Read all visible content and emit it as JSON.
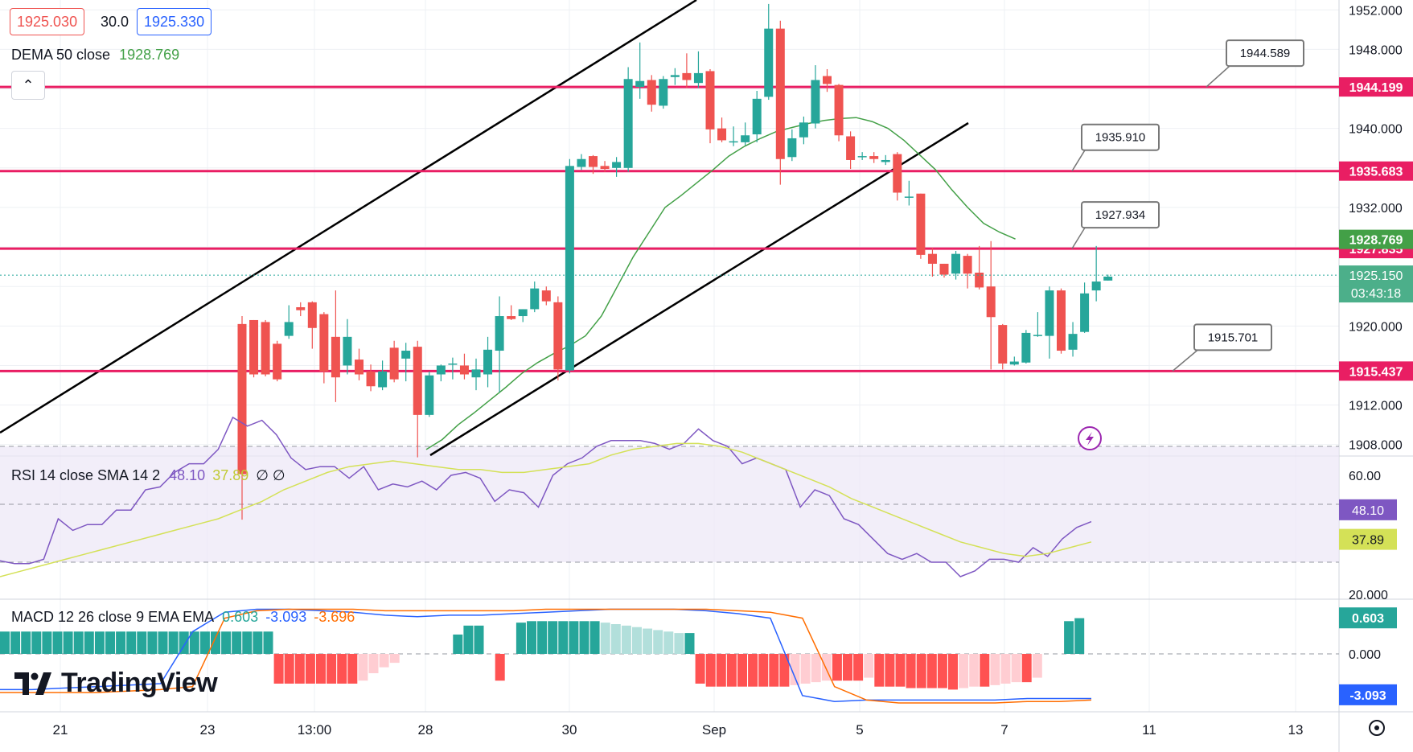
{
  "header": {
    "bid": "1925.030",
    "spread": "30.0",
    "ask": "1925.330",
    "dema_label": "DEMA 50 close",
    "dema_value": "1928.769"
  },
  "rsi_legend": {
    "label": "RSI 14 close SMA 14 2",
    "rsi": "48.10",
    "sma": "37.89",
    "extra": "∅ ∅"
  },
  "macd_legend": {
    "label": "MACD 12 26 close 9 EMA EMA",
    "hist": "0.603",
    "macd": "-3.093",
    "signal": "-3.696"
  },
  "branding": {
    "logo_text": "TradingView"
  },
  "colors": {
    "up": "#26a69a",
    "down": "#ef5350",
    "level": "#e91e63",
    "channel": "#000000",
    "dema": "#43a047",
    "rsi": "#7e57c2",
    "rsi_sma": "#d4e157",
    "macd": "#2962ff",
    "signal": "#ff6d00"
  },
  "chart_data": [
    {
      "type": "candlestick",
      "x_ticks": [
        "21",
        "23",
        "13:00",
        "28",
        "30",
        "Sep",
        "5",
        "7",
        "11",
        "13"
      ],
      "y_ticks": [
        "1952.000",
        "1948.000",
        "1944.000",
        "1940.000",
        "1936.000",
        "1932.000",
        "1928.000",
        "1924.000",
        "1920.000",
        "1916.000",
        "1912.000",
        "1908.000"
      ],
      "ylim": [
        1907,
        1953
      ],
      "candles": [
        [
          1920.2,
          1905,
          1921,
          1900.4
        ],
        [
          1920.6,
          1915.1,
          1920.6,
          1914.8
        ],
        [
          1920.4,
          1915.1,
          1920.6,
          1914.9
        ],
        [
          1918.2,
          1914.6,
          1918.5,
          1914.4
        ],
        [
          1919.0,
          1920.4,
          1922.1,
          1918.7
        ],
        [
          1921.9,
          1921.6,
          1922.4,
          1921.0
        ],
        [
          1922.4,
          1919.8,
          1922.5,
          1917.7
        ],
        [
          1921.2,
          1915.4,
          1921.4,
          1914.2
        ],
        [
          1918.9,
          1914.8,
          1923.6,
          1912.3
        ],
        [
          1916.0,
          1918.9,
          1920.7,
          1915.1
        ],
        [
          1916.6,
          1915.1,
          1917.7,
          1914.5
        ],
        [
          1915.4,
          1913.9,
          1916.1,
          1913.4
        ],
        [
          1913.8,
          1915.4,
          1916.5,
          1913.5
        ],
        [
          1917.8,
          1914.6,
          1918.5,
          1914.3
        ],
        [
          1916.7,
          1917.5,
          1918.3,
          1914.4
        ],
        [
          1917.9,
          1911.0,
          1918.5,
          1906.7
        ],
        [
          1911.0,
          1915.0,
          1915.4,
          1910.8
        ],
        [
          1915.1,
          1916.0,
          1916.1,
          1914.4
        ],
        [
          1916.2,
          1916.2,
          1916.8,
          1914.6
        ],
        [
          1916.0,
          1915.1,
          1917.2,
          1914.6
        ],
        [
          1914.8,
          1915.6,
          1916.7,
          1913.5
        ],
        [
          1915.1,
          1917.6,
          1918.9,
          1913.8
        ],
        [
          1917.5,
          1921.0,
          1923.0,
          1913.3
        ],
        [
          1921.0,
          1920.7,
          1922.1,
          1920.6
        ],
        [
          1921.0,
          1921.7,
          1921.7,
          1920.4
        ],
        [
          1921.7,
          1923.8,
          1924.5,
          1921.4
        ],
        [
          1923.6,
          1922.5,
          1924.0,
          1922.1
        ],
        [
          1922.4,
          1915.6,
          1923.0,
          1914.5
        ],
        [
          1915.5,
          1936.2,
          1936.9,
          1915.2
        ],
        [
          1936.1,
          1936.9,
          1937.4,
          1935.8
        ],
        [
          1937.2,
          1936.1,
          1937.3,
          1935.4
        ],
        [
          1936.2,
          1935.9,
          1936.7,
          1935.6
        ],
        [
          1936.0,
          1936.6,
          1937.1,
          1935.1
        ],
        [
          1936.0,
          1945.0,
          1946.2,
          1935.6
        ],
        [
          1944.2,
          1944.8,
          1948.7,
          1943.0
        ],
        [
          1944.9,
          1942.4,
          1945.4,
          1941.7
        ],
        [
          1942.3,
          1945.0,
          1945.3,
          1942.0
        ],
        [
          1945.2,
          1945.4,
          1946.1,
          1944.4
        ],
        [
          1945.6,
          1944.9,
          1947.6,
          1944.1
        ],
        [
          1944.6,
          1945.6,
          1947.8,
          1944.1
        ],
        [
          1945.8,
          1939.9,
          1946.0,
          1938.5
        ],
        [
          1940.0,
          1938.8,
          1941.1,
          1938.6
        ],
        [
          1938.6,
          1938.7,
          1940.2,
          1938.2
        ],
        [
          1938.6,
          1939.3,
          1940.6,
          1938.3
        ],
        [
          1939.4,
          1943.0,
          1943.8,
          1938.6
        ],
        [
          1943.2,
          1950.1,
          1952.6,
          1942.9
        ],
        [
          1950.1,
          1936.9,
          1950.9,
          1934.3
        ],
        [
          1937.1,
          1939.0,
          1939.9,
          1936.7
        ],
        [
          1939.1,
          1940.6,
          1941.2,
          1938.4
        ],
        [
          1940.5,
          1944.9,
          1946.4,
          1940.0
        ],
        [
          1945.3,
          1944.5,
          1946.0,
          1943.7
        ],
        [
          1944.4,
          1939.3,
          1944.5,
          1938.7
        ],
        [
          1939.2,
          1936.8,
          1939.7,
          1935.9
        ],
        [
          1937.2,
          1937.2,
          1937.6,
          1936.8
        ],
        [
          1937.2,
          1936.9,
          1937.6,
          1936.5
        ],
        [
          1936.6,
          1936.8,
          1937.3,
          1936.3
        ],
        [
          1937.4,
          1933.5,
          1937.6,
          1932.7
        ],
        [
          1933.0,
          1933.1,
          1934.7,
          1932.2
        ],
        [
          1933.4,
          1927.2,
          1933.4,
          1926.8
        ],
        [
          1927.3,
          1926.3,
          1927.9,
          1925.0
        ],
        [
          1926.3,
          1925.2,
          1926.3,
          1924.9
        ],
        [
          1925.3,
          1927.3,
          1927.6,
          1924.7
        ],
        [
          1927.1,
          1925.3,
          1927.3,
          1923.8
        ],
        [
          1925.4,
          1923.9,
          1928.1,
          1923.7
        ],
        [
          1924.0,
          1920.9,
          1928.6,
          1915.6
        ],
        [
          1920.1,
          1916.2,
          1920.2,
          1915.6
        ],
        [
          1916.1,
          1916.4,
          1916.9,
          1916.0
        ],
        [
          1916.3,
          1919.3,
          1919.6,
          1916.2
        ],
        [
          1919.1,
          1919.1,
          1921.4,
          1918.9
        ],
        [
          1919.0,
          1923.6,
          1924.0,
          1916.7
        ],
        [
          1923.6,
          1917.5,
          1923.8,
          1917.2
        ],
        [
          1917.6,
          1919.2,
          1920.4,
          1916.9
        ],
        [
          1919.4,
          1923.3,
          1924.4,
          1919.3
        ],
        [
          1923.6,
          1924.5,
          1928.1,
          1922.5
        ],
        [
          1924.6,
          1925.0,
          1925.2,
          1924.6
        ]
      ],
      "levels": [
        {
          "value": 1944.199,
          "label": "1944.199",
          "callout": "1944.589"
        },
        {
          "value": 1935.683,
          "label": "1935.683",
          "callout": "1935.910"
        },
        {
          "value": 1927.835,
          "label": "1927.835",
          "callout": "1927.934"
        },
        {
          "value": 1915.437,
          "label": "1915.437",
          "callout": "1915.701"
        }
      ],
      "dema_value_label": "1928.769",
      "current_price_label": "1925.150",
      "countdown_label": "03:43:18",
      "dema": [
        1907.5,
        1908.5,
        1910.0,
        1911.2,
        1912.5,
        1913.8,
        1915.2,
        1916.3,
        1917.2,
        1918.0,
        1919.0,
        1921.0,
        1924.0,
        1927.0,
        1929.5,
        1932.0,
        1933.2,
        1934.5,
        1935.8,
        1937.2,
        1938.2,
        1939.0,
        1939.7,
        1940.1,
        1940.5,
        1940.8,
        1941.0,
        1941.1,
        1940.7,
        1940.0,
        1938.8,
        1937.3,
        1935.8,
        1933.8,
        1932.0,
        1930.4,
        1929.5,
        1928.8
      ]
    },
    {
      "type": "line",
      "title": "RSI 14 close SMA 14 2",
      "y_ticks": [
        "60.00",
        "20.000"
      ],
      "value_labels": [
        "48.10",
        "37.89"
      ],
      "series": [
        {
          "name": "RSI",
          "values": [
            30.5,
            29.5,
            29.5,
            31,
            45,
            41,
            43,
            43,
            48,
            48,
            55,
            56,
            61,
            64,
            64,
            69,
            80,
            77,
            79,
            74,
            66,
            62,
            63,
            63,
            59,
            63,
            55,
            57,
            56,
            58,
            55,
            60,
            61,
            59,
            51,
            55,
            54,
            49,
            60,
            64,
            66,
            70,
            72,
            72,
            72,
            71,
            69,
            71,
            76,
            72,
            70,
            64,
            66,
            64,
            62,
            49,
            55,
            53,
            45,
            43,
            38,
            33,
            31,
            33,
            30,
            30,
            25,
            27,
            31,
            31,
            30,
            35,
            32,
            38,
            42,
            44
          ]
        },
        {
          "name": "SMA",
          "values": [
            25,
            27,
            29,
            31,
            33,
            35,
            37,
            39,
            41,
            43,
            45,
            48,
            51,
            55,
            58,
            61,
            63,
            64,
            65,
            64,
            63,
            62,
            62,
            61,
            61,
            62,
            63,
            64,
            67,
            69,
            70,
            71,
            71,
            70,
            68,
            65,
            62,
            59,
            56,
            52,
            49,
            46,
            43,
            40,
            37,
            35,
            33,
            32,
            33,
            35,
            37
          ]
        }
      ]
    },
    {
      "type": "bar",
      "title": "MACD 12 26 close 9 EMA EMA",
      "y_ticks": [
        "0.000"
      ],
      "value_labels": [
        "0.603",
        "-3.093"
      ],
      "histogram": [
        1.5,
        1.5,
        1.5,
        1.5,
        1.5,
        1.5,
        1.5,
        1.5,
        1.5,
        1.5,
        1.5,
        1.5,
        1.5,
        1.5,
        1.5,
        1.5,
        1.5,
        1.5,
        1.5,
        1.5,
        1.5,
        1.5,
        1.5,
        1.5,
        1.5,
        1.5,
        -2.0,
        -2.0,
        -2.0,
        -2.0,
        -2.0,
        -2.0,
        -2.0,
        -2.0,
        -1.8,
        -1.3,
        -0.9,
        -0.6,
        0.0,
        0.0,
        0.0,
        0.0,
        0.0,
        1.3,
        1.9,
        1.9,
        0.0,
        -1.8,
        0.0,
        2.1,
        2.2,
        2.2,
        2.2,
        2.2,
        2.2,
        2.2,
        2.2,
        2.1,
        2.0,
        1.9,
        1.8,
        1.7,
        1.6,
        1.5,
        1.4,
        1.4,
        -2.0,
        -2.2,
        -2.2,
        -2.2,
        -2.2,
        -2.2,
        -2.2,
        -2.2,
        -2.2,
        -2.1,
        -2.0,
        -1.9,
        -1.8,
        -1.8,
        -1.8,
        -1.8,
        -1.6,
        -2.2,
        -2.2,
        -2.2,
        -2.3,
        -2.3,
        -2.3,
        -2.3,
        -2.4,
        -2.3,
        -2.2,
        -2.2,
        -2.1,
        -2.0,
        -1.9,
        -1.9,
        -1.6,
        0.0,
        0.0,
        2.2,
        2.4
      ],
      "series": [
        {
          "name": "MACD",
          "values": [
            -2.4,
            -2.4,
            -2.3,
            -2.2,
            -2.1,
            -2.0,
            1.5,
            2.8,
            3.0,
            3.0,
            2.9,
            2.8,
            2.6,
            2.5,
            2.6,
            2.6,
            2.7,
            2.8,
            2.9,
            3.0,
            3.0,
            3.0,
            2.9,
            2.7,
            2.4,
            -2.8,
            -3.2,
            -3.1,
            -3.1,
            -3.1,
            -3.1,
            -3.1,
            -3.0,
            -3.0,
            -3.0
          ]
        },
        {
          "name": "Signal",
          "values": [
            -2.6,
            -2.6,
            -2.6,
            -2.6,
            -2.5,
            -2.4,
            -2.2,
            2.4,
            2.9,
            3.0,
            3.0,
            3.0,
            2.9,
            2.9,
            2.9,
            2.9,
            2.9,
            3.0,
            3.0,
            3.0,
            3.0,
            3.0,
            3.0,
            2.9,
            2.8,
            2.4,
            -2.2,
            -3.1,
            -3.3,
            -3.3,
            -3.3,
            -3.3,
            -3.2,
            -3.2,
            -3.1
          ]
        }
      ]
    }
  ]
}
